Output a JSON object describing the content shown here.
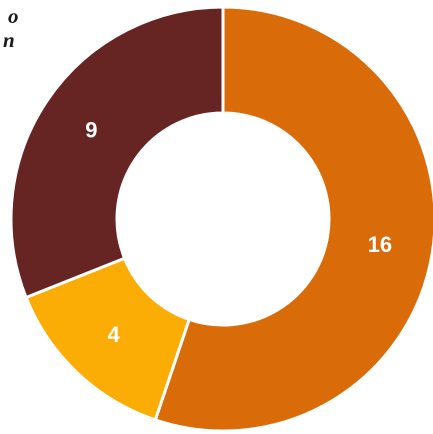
{
  "title_fragment": {
    "line1": "o",
    "line2": "n"
  },
  "chart_data": {
    "type": "pie",
    "variant": "donut",
    "slices": [
      {
        "value": 16,
        "label": "16",
        "color": "#d96b08"
      },
      {
        "value": 4,
        "label": "4",
        "color": "#fbac05"
      },
      {
        "value": 9,
        "label": "9",
        "color": "#662423"
      }
    ],
    "start_angle": "12 o'clock",
    "direction": "clockwise",
    "legend": "none"
  }
}
